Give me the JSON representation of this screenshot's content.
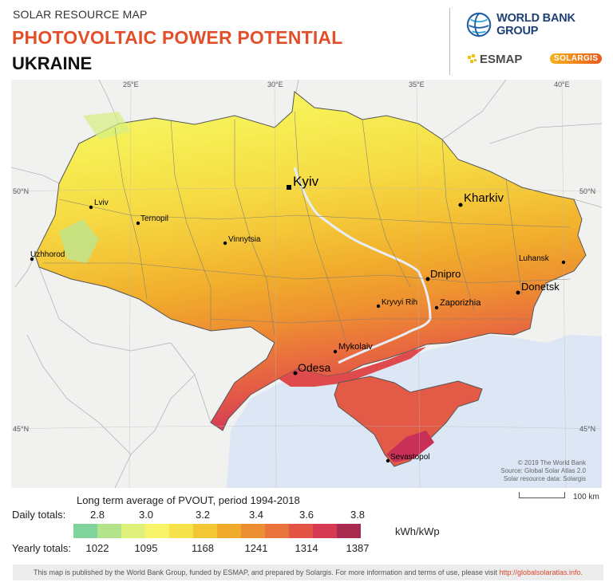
{
  "header": {
    "subtitle": "SOLAR RESOURCE MAP",
    "title": "PHOTOVOLTAIC POWER POTENTIAL",
    "country": "UKRAINE"
  },
  "logos": {
    "world_bank": "WORLD BANK GROUP",
    "esmap": "ESMAP",
    "solargis": "SOLARGIS"
  },
  "map": {
    "graticule": {
      "lon_labels": [
        "25°E",
        "30°E",
        "35°E",
        "40°E"
      ],
      "lat_labels": [
        "50°N",
        "45°N"
      ]
    },
    "cities": [
      {
        "name": "Kyiv",
        "capital": true
      },
      {
        "name": "Kharkiv",
        "capital": false
      },
      {
        "name": "Lviv",
        "capital": false
      },
      {
        "name": "Ternopil",
        "capital": false
      },
      {
        "name": "Vinnytsia",
        "capital": false
      },
      {
        "name": "Uzhhorod",
        "capital": false
      },
      {
        "name": "Luhansk",
        "capital": false
      },
      {
        "name": "Dnipro",
        "capital": false
      },
      {
        "name": "Donetsk",
        "capital": false
      },
      {
        "name": "Kryvyi Rih",
        "capital": false
      },
      {
        "name": "Zaporizhia",
        "capital": false
      },
      {
        "name": "Mykolaiv",
        "capital": false
      },
      {
        "name": "Odesa",
        "capital": false
      },
      {
        "name": "Sevastopol",
        "capital": false
      }
    ],
    "credits": [
      "© 2019 The World Bank",
      "Source: Global Solar Atlas 2.0",
      "Solar resource data: Solargis"
    ],
    "colors": {
      "sea": "#dce6f5",
      "land_outside": "#f1f1ef",
      "border": "#8a8a8a"
    }
  },
  "legend": {
    "caption": "Long term average of PVOUT, period 1994-2018",
    "daily_label": "Daily totals:",
    "daily_values": [
      "2.8",
      "3.0",
      "3.2",
      "3.4",
      "3.6",
      "3.8"
    ],
    "yearly_label": "Yearly totals:",
    "yearly_values": [
      "1022",
      "1095",
      "1168",
      "1241",
      "1314",
      "1387"
    ],
    "unit": "kWh/kWp",
    "colors": [
      "#7fd39b",
      "#b3e38b",
      "#dff17a",
      "#f8f46a",
      "#f6e24a",
      "#f3c733",
      "#f0ab2a",
      "#ec8f33",
      "#e8733d",
      "#e35346",
      "#d63a52",
      "#a72b4e"
    ]
  },
  "scale_bar": {
    "label": "100 km"
  },
  "footer": {
    "text": "This map is published by the World Bank Group, funded by ESMAP, and prepared by Solargis. For more information and terms of use, please visit",
    "link": "http://globalsolaratlas.info."
  }
}
